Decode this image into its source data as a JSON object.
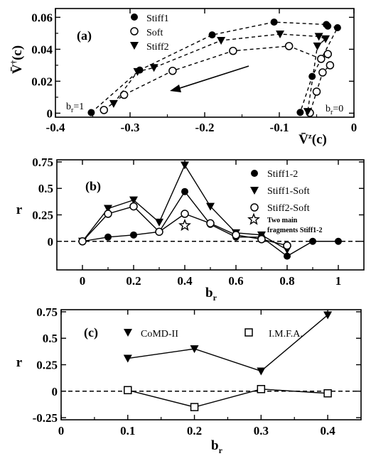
{
  "chart_data": [
    {
      "panel": "(a)",
      "type": "scatter",
      "xlabel": "V̄z(c)",
      "ylabel": "V̄†(c)",
      "xlim": [
        -0.4,
        0.0
      ],
      "ylim": [
        -0.0025,
        0.0655
      ],
      "xticks": [
        "-0.4",
        "-0.3",
        "-0.2",
        "-0.1",
        "0"
      ],
      "yticks": [
        "0",
        "0.02",
        "0.04",
        "0.06"
      ],
      "legend_position": "top-left",
      "annotations": [
        "br=1",
        "br=0"
      ],
      "series": [
        {
          "name": "Stiff1",
          "marker": "filled-circle",
          "x": [
            -0.352,
            -0.287,
            -0.19,
            -0.107,
            -0.037,
            -0.035,
            -0.022,
            -0.056,
            -0.072
          ],
          "y": [
            0.0004,
            0.027,
            0.049,
            0.057,
            0.0555,
            0.0545,
            0.0535,
            0.023,
            0.0005
          ]
        },
        {
          "name": "Soft",
          "marker": "open-circle",
          "x": [
            -0.335,
            -0.308,
            -0.243,
            -0.162,
            -0.087,
            -0.044,
            -0.035,
            -0.032,
            -0.042,
            -0.05,
            -0.059
          ],
          "y": [
            0.002,
            0.0115,
            0.0265,
            0.039,
            0.042,
            0.034,
            0.037,
            0.03,
            0.0255,
            0.0135,
            0.0002
          ]
        },
        {
          "name": "Stiff2",
          "marker": "filled-triangle",
          "x": [
            -0.322,
            -0.29,
            -0.268,
            -0.178,
            -0.099,
            -0.047,
            -0.038,
            -0.049,
            -0.062
          ],
          "y": [
            0.006,
            0.026,
            0.0285,
            0.0455,
            0.0495,
            0.048,
            0.0465,
            0.042,
            0.001
          ]
        }
      ]
    },
    {
      "panel": "(b)",
      "type": "line",
      "xlabel": "br",
      "ylabel": "r",
      "xlim": [
        -0.1,
        1.1
      ],
      "ylim": [
        -0.27,
        0.77
      ],
      "xticks": [
        "0",
        "0.2",
        "0.4",
        "0.6",
        "0.8",
        "1"
      ],
      "yticks": [
        "0",
        "0.25",
        "0.5",
        "0.75"
      ],
      "legend_position": "right",
      "x": [
        0,
        0.1,
        0.2,
        0.3,
        0.4,
        0.5,
        0.6,
        0.7,
        0.8,
        0.9,
        1.0
      ],
      "series": [
        {
          "name": "Stiff1-2",
          "marker": "filled-circle",
          "values": [
            0.0,
            0.04,
            0.06,
            0.09,
            0.47,
            0.16,
            0.04,
            0.04,
            -0.14,
            0.0,
            0.0
          ]
        },
        {
          "name": "Stiff1-Soft",
          "marker": "filled-triangle",
          "values": [
            0.0,
            0.31,
            0.39,
            0.18,
            0.72,
            0.33,
            0.08,
            0.06,
            -0.08,
            null,
            null
          ]
        },
        {
          "name": "Stiff2-Soft",
          "marker": "open-circle",
          "values": [
            0.0,
            0.26,
            0.33,
            0.09,
            0.26,
            0.17,
            0.06,
            0.02,
            -0.04,
            null,
            null
          ]
        },
        {
          "name": "Two main fragments Stiff1-2",
          "legend_lines": [
            "Two main",
            "fragments Stiff1-2"
          ],
          "marker": "open-star",
          "values": [
            null,
            null,
            null,
            null,
            0.15,
            null,
            null,
            null,
            null,
            null,
            null
          ]
        }
      ]
    },
    {
      "panel": "(c)",
      "type": "line",
      "xlabel": "br",
      "ylabel": "r",
      "xlim": [
        0,
        0.45
      ],
      "ylim": [
        -0.27,
        0.77
      ],
      "xticks": [
        "0",
        "0.1",
        "0.2",
        "0.3",
        "0.4"
      ],
      "yticks": [
        "-0.25",
        "0",
        "0.25",
        "0.5",
        "0.75"
      ],
      "legend_position": "top",
      "x": [
        0.1,
        0.2,
        0.3,
        0.4
      ],
      "series": [
        {
          "name": "CoMD-II",
          "marker": "filled-triangle",
          "values": [
            0.31,
            0.4,
            0.19,
            0.72
          ]
        },
        {
          "name": "I.M.F.A.",
          "marker": "open-square",
          "values": [
            0.01,
            -0.15,
            0.02,
            -0.02
          ]
        }
      ]
    }
  ]
}
